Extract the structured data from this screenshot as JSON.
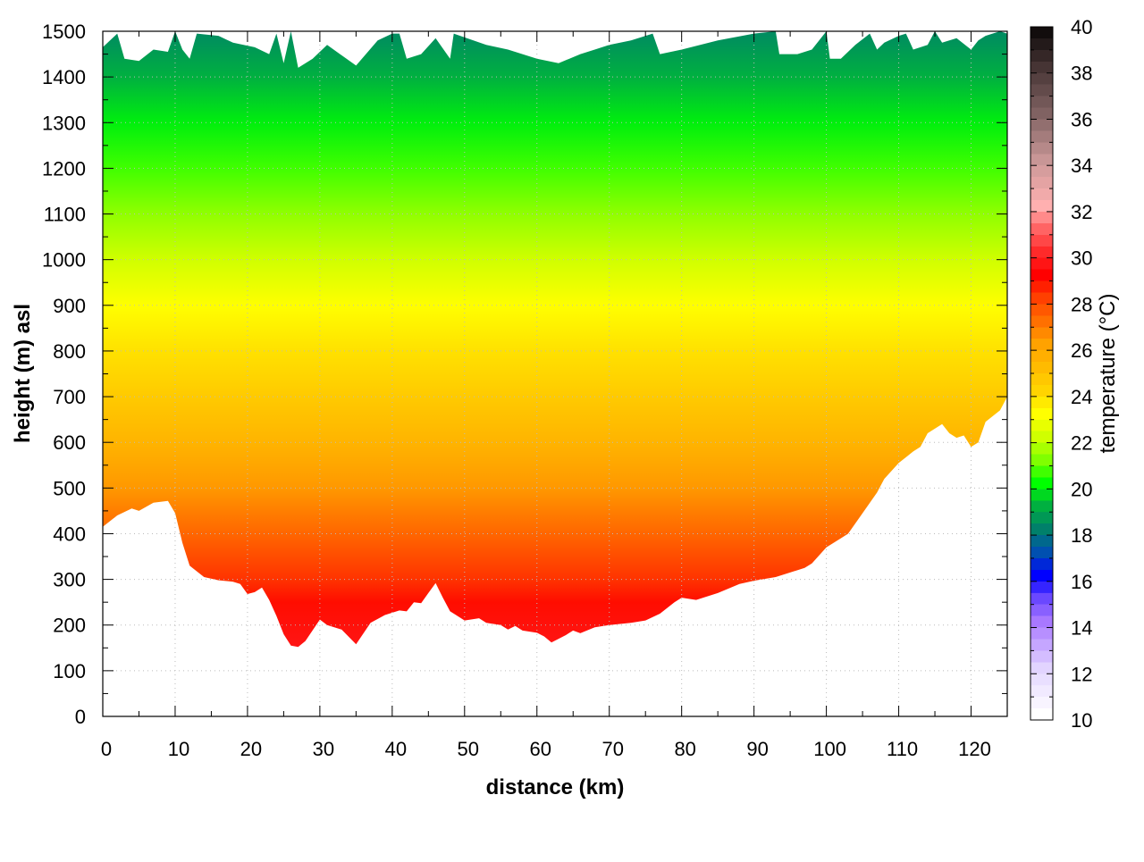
{
  "chart_data": {
    "type": "heatmap",
    "title": "",
    "xlabel": "distance (km)",
    "ylabel": "height (m) asl",
    "colorbar_label": "temperature (°C)",
    "xlim": [
      0,
      125
    ],
    "ylim": [
      0,
      1500
    ],
    "clim": [
      10,
      40
    ],
    "grid": true,
    "x_ticks": [
      0,
      10,
      20,
      30,
      40,
      50,
      60,
      70,
      80,
      90,
      100,
      110,
      120
    ],
    "y_ticks": [
      0,
      100,
      200,
      300,
      400,
      500,
      600,
      700,
      800,
      900,
      1000,
      1100,
      1200,
      1300,
      1400,
      1500
    ],
    "colorbar_ticks": [
      10,
      12,
      14,
      16,
      18,
      20,
      22,
      24,
      26,
      28,
      30,
      32,
      34,
      36,
      38,
      40
    ],
    "palette": [
      [
        10,
        "#ffffff"
      ],
      [
        12,
        "#e2d4ff"
      ],
      [
        14,
        "#a878ff"
      ],
      [
        15,
        "#6a48ff"
      ],
      [
        16,
        "#0000ff"
      ],
      [
        17,
        "#0050b0"
      ],
      [
        18,
        "#00806a"
      ],
      [
        19,
        "#00b040"
      ],
      [
        20,
        "#00ff00"
      ],
      [
        21,
        "#80ff00"
      ],
      [
        22,
        "#d0ff00"
      ],
      [
        23,
        "#ffff00"
      ],
      [
        24,
        "#ffd400"
      ],
      [
        26,
        "#ffa200"
      ],
      [
        27,
        "#ff7000"
      ],
      [
        28,
        "#ff4000"
      ],
      [
        29,
        "#ff0000"
      ],
      [
        30,
        "#ff2a2a"
      ],
      [
        31,
        "#ff6464"
      ],
      [
        32,
        "#ffb0b0"
      ],
      [
        34,
        "#c89696"
      ],
      [
        36,
        "#806262"
      ],
      [
        38,
        "#463434"
      ],
      [
        40,
        "#000000"
      ]
    ],
    "temperature_vs_height": [
      [
        150,
        29.5
      ],
      [
        250,
        28.8
      ],
      [
        300,
        28.2
      ],
      [
        400,
        27.2
      ],
      [
        500,
        26.2
      ],
      [
        600,
        25.3
      ],
      [
        700,
        24.4
      ],
      [
        800,
        23.7
      ],
      [
        900,
        23.0
      ],
      [
        1000,
        22.0
      ],
      [
        1100,
        21.2
      ],
      [
        1200,
        20.5
      ],
      [
        1300,
        19.8
      ],
      [
        1400,
        19.0
      ],
      [
        1500,
        18.2
      ]
    ],
    "ground_profile": [
      [
        0,
        415
      ],
      [
        2,
        440
      ],
      [
        4,
        455
      ],
      [
        5,
        450
      ],
      [
        7,
        468
      ],
      [
        9,
        472
      ],
      [
        10,
        445
      ],
      [
        11,
        380
      ],
      [
        12,
        330
      ],
      [
        14,
        305
      ],
      [
        16,
        298
      ],
      [
        18,
        295
      ],
      [
        19,
        290
      ],
      [
        20,
        268
      ],
      [
        21,
        272
      ],
      [
        22,
        282
      ],
      [
        23,
        255
      ],
      [
        24,
        220
      ],
      [
        25,
        180
      ],
      [
        26,
        155
      ],
      [
        27,
        152
      ],
      [
        28,
        165
      ],
      [
        30,
        212
      ],
      [
        31,
        200
      ],
      [
        33,
        190
      ],
      [
        35,
        158
      ],
      [
        37,
        205
      ],
      [
        39,
        222
      ],
      [
        41,
        232
      ],
      [
        42,
        230
      ],
      [
        43,
        250
      ],
      [
        44,
        248
      ],
      [
        45,
        270
      ],
      [
        46,
        292
      ],
      [
        47,
        260
      ],
      [
        48,
        230
      ],
      [
        50,
        210
      ],
      [
        52,
        215
      ],
      [
        53,
        205
      ],
      [
        55,
        200
      ],
      [
        56,
        190
      ],
      [
        57,
        198
      ],
      [
        58,
        188
      ],
      [
        60,
        183
      ],
      [
        61,
        175
      ],
      [
        62,
        162
      ],
      [
        64,
        178
      ],
      [
        65,
        188
      ],
      [
        66,
        182
      ],
      [
        68,
        195
      ],
      [
        70,
        200
      ],
      [
        73,
        205
      ],
      [
        75,
        210
      ],
      [
        77,
        225
      ],
      [
        79,
        250
      ],
      [
        80,
        260
      ],
      [
        82,
        255
      ],
      [
        85,
        270
      ],
      [
        88,
        290
      ],
      [
        90,
        297
      ],
      [
        93,
        305
      ],
      [
        95,
        315
      ],
      [
        97,
        325
      ],
      [
        98,
        335
      ],
      [
        100,
        370
      ],
      [
        102,
        390
      ],
      [
        103,
        400
      ],
      [
        105,
        445
      ],
      [
        107,
        490
      ],
      [
        108,
        520
      ],
      [
        110,
        555
      ],
      [
        112,
        580
      ],
      [
        113,
        590
      ],
      [
        114,
        620
      ],
      [
        115,
        630
      ],
      [
        116,
        640
      ],
      [
        117,
        620
      ],
      [
        118,
        610
      ],
      [
        119,
        615
      ],
      [
        120,
        590
      ],
      [
        121,
        600
      ],
      [
        122,
        645
      ],
      [
        124,
        670
      ],
      [
        125,
        700
      ]
    ],
    "top_profile": [
      [
        0,
        1465
      ],
      [
        2,
        1495
      ],
      [
        3,
        1440
      ],
      [
        5,
        1435
      ],
      [
        7,
        1460
      ],
      [
        9,
        1455
      ],
      [
        10,
        1500
      ],
      [
        11,
        1460
      ],
      [
        12,
        1440
      ],
      [
        13,
        1495
      ],
      [
        16,
        1490
      ],
      [
        18,
        1475
      ],
      [
        21,
        1465
      ],
      [
        23,
        1450
      ],
      [
        24,
        1495
      ],
      [
        25,
        1430
      ],
      [
        26,
        1500
      ],
      [
        27,
        1420
      ],
      [
        29,
        1440
      ],
      [
        31,
        1470
      ],
      [
        35,
        1425
      ],
      [
        38,
        1480
      ],
      [
        40,
        1495
      ],
      [
        41,
        1495
      ],
      [
        42,
        1440
      ],
      [
        44,
        1450
      ],
      [
        46,
        1485
      ],
      [
        48,
        1440
      ],
      [
        48.5,
        1495
      ],
      [
        53,
        1470
      ],
      [
        56,
        1460
      ],
      [
        60,
        1440
      ],
      [
        63,
        1430
      ],
      [
        66,
        1450
      ],
      [
        68,
        1460
      ],
      [
        70,
        1470
      ],
      [
        73,
        1480
      ],
      [
        76,
        1495
      ],
      [
        77,
        1450
      ],
      [
        80,
        1460
      ],
      [
        85,
        1480
      ],
      [
        90,
        1495
      ],
      [
        93,
        1500
      ],
      [
        93.5,
        1450
      ],
      [
        96,
        1450
      ],
      [
        98,
        1460
      ],
      [
        100,
        1500
      ],
      [
        100.5,
        1440
      ],
      [
        102,
        1440
      ],
      [
        104,
        1470
      ],
      [
        106,
        1495
      ],
      [
        107,
        1460
      ],
      [
        108,
        1475
      ],
      [
        110,
        1490
      ],
      [
        111,
        1495
      ],
      [
        112,
        1460
      ],
      [
        114,
        1470
      ],
      [
        115,
        1500
      ],
      [
        116,
        1475
      ],
      [
        118,
        1485
      ],
      [
        120,
        1460
      ],
      [
        121,
        1480
      ],
      [
        122,
        1490
      ],
      [
        124,
        1500
      ],
      [
        125,
        1495
      ]
    ]
  }
}
